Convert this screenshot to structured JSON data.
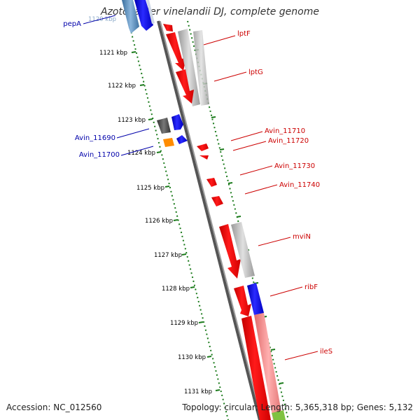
{
  "title": "Azotobacter vinelandii DJ, complete genome",
  "accession_text": "Accession: NC_012560",
  "summary_text": "Topology: circular; Length: 5,365,318 bp; Genes: 5,132",
  "kbp_labels": [
    "1120 kbp",
    "1121 kbp",
    "1122 kbp",
    "1123 kbp",
    "1124 kbp",
    "1125 kbp",
    "1126 kbp",
    "1127 kbp",
    "1128 kbp",
    "1129 kbp",
    "1130 kbp",
    "1131 kbp"
  ],
  "genes_right": [
    "lptF",
    "lptG",
    "Avin_11710",
    "Avin_11720",
    "Avin_11730",
    "Avin_11740",
    "mviN",
    "ribF",
    "ileS"
  ],
  "genes_left": [
    "pepA",
    "Avin_11690",
    "Avin_11700"
  ],
  "colors": {
    "forward": "#ff0000",
    "reverse": "#0000ee",
    "cds_gray": "#bbbbbb",
    "dark_gray": "#555555",
    "orange": "#ff8c00",
    "steel": "#5b8fbf",
    "pink": "#f28c8c",
    "tick_green": "#1a7a1a",
    "label_red": "#cc0000",
    "label_blue": "#0000aa"
  }
}
